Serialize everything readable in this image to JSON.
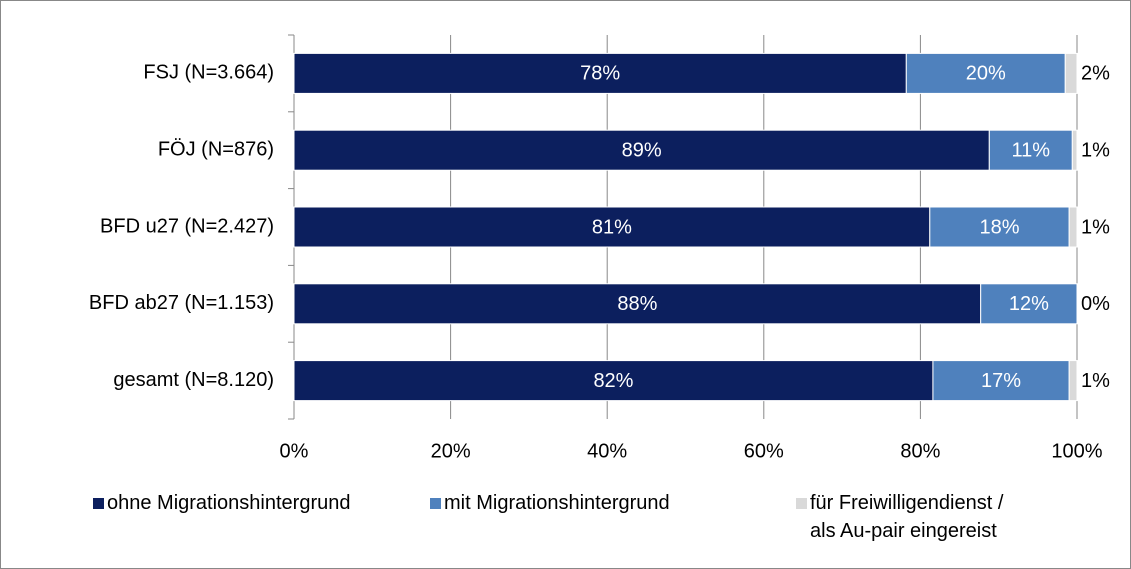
{
  "chart_data": {
    "type": "stacked-bar-horizontal",
    "categories": [
      "FSJ (N=3.664)",
      "FÖJ (N=876)",
      "BFD u27 (N=2.427)",
      "BFD ab27 (N=1.153)",
      "gesamt (N=8.120)"
    ],
    "series": [
      {
        "name": "ohne Migrationshintergrund",
        "color": "#0c1f5e",
        "values": [
          78.2,
          88.8,
          81.2,
          87.7,
          81.6
        ],
        "value_labels": [
          "78%",
          "89%",
          "81%",
          "88%",
          "82%"
        ]
      },
      {
        "name": "mit Migrationshintergrund",
        "color": "#4f81bd",
        "values": [
          20.3,
          10.6,
          17.8,
          12.3,
          17.4
        ],
        "value_labels": [
          "20%",
          "11%",
          "18%",
          "12%",
          "17%"
        ]
      },
      {
        "name": "für Freiwilligendienst /\nals Au-pair eingereist",
        "color": "#d9d9d9",
        "values": [
          1.5,
          0.6,
          1.0,
          0,
          1.0
        ],
        "value_labels": [
          "2%",
          "1%",
          "1%",
          "0%",
          "1%"
        ]
      }
    ],
    "xlim": [
      0,
      100
    ],
    "xticks": [
      {
        "value": 0,
        "label": "0%"
      },
      {
        "value": 20,
        "label": "20%"
      },
      {
        "value": 40,
        "label": "40%"
      },
      {
        "value": 60,
        "label": "60%"
      },
      {
        "value": 80,
        "label": "80%"
      },
      {
        "value": 100,
        "label": "100%"
      }
    ],
    "grid": true,
    "legend": "bottom"
  }
}
